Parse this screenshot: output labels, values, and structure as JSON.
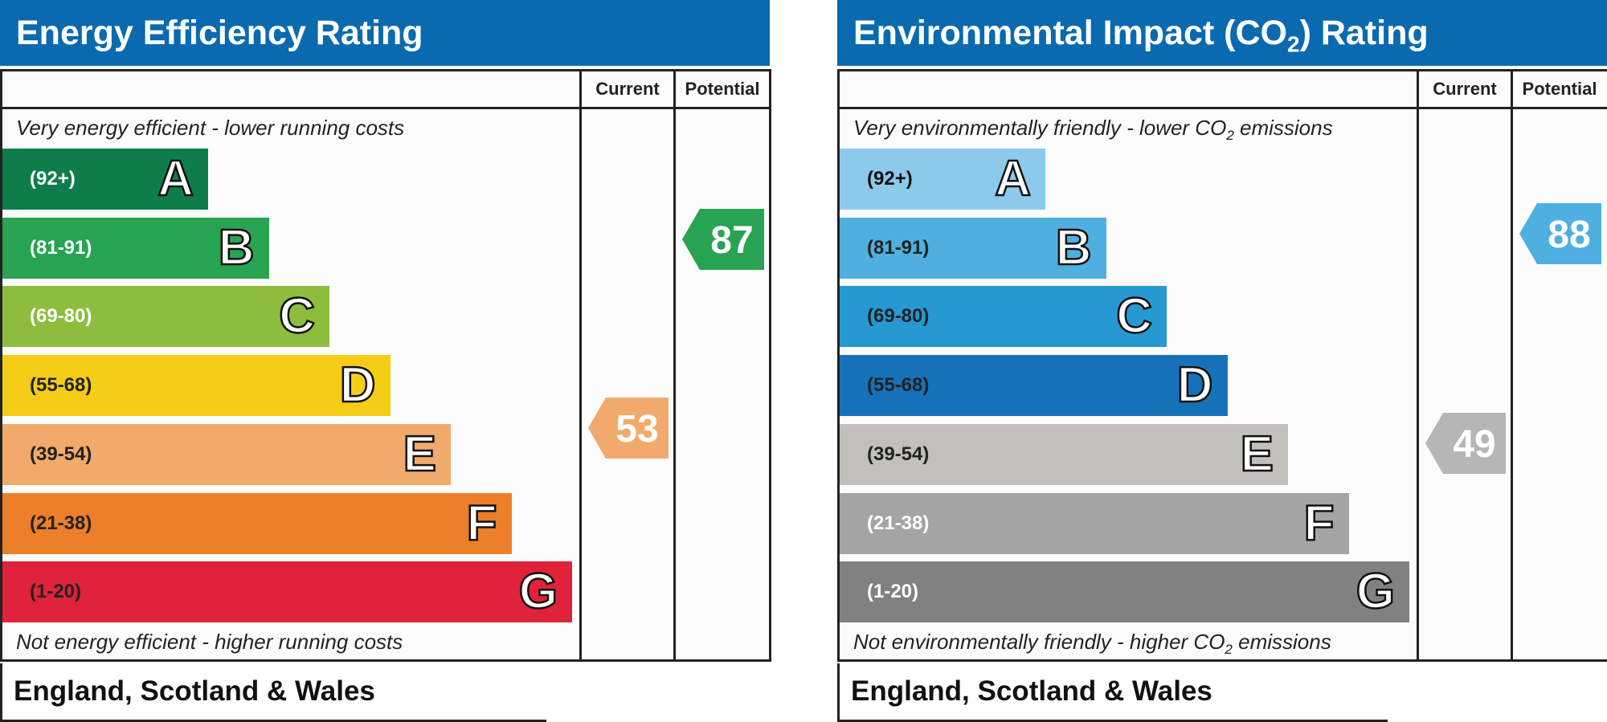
{
  "chart_data": [
    {
      "type": "bar",
      "title": "Energy Efficiency Rating",
      "columns": [
        "Current",
        "Potential"
      ],
      "top_caption": "Very energy efficient - lower running costs",
      "bottom_caption": "Not energy efficient - higher running costs",
      "footer": "England, Scotland & Wales",
      "bands": [
        {
          "letter": "A",
          "range": "(92+)",
          "color": "#0f7d4a",
          "range_color": "#ffffff"
        },
        {
          "letter": "B",
          "range": "(81-91)",
          "color": "#27a351",
          "range_color": "#ffffff"
        },
        {
          "letter": "C",
          "range": "(69-80)",
          "color": "#8dbd3d",
          "range_color": "#ffffff"
        },
        {
          "letter": "D",
          "range": "(55-68)",
          "color": "#f5cd16",
          "range_color": "#222222"
        },
        {
          "letter": "E",
          "range": "(39-54)",
          "color": "#f2aa6c",
          "range_color": "#222222"
        },
        {
          "letter": "F",
          "range": "(21-38)",
          "color": "#ec7f29",
          "range_color": "#222222"
        },
        {
          "letter": "G",
          "range": "(1-20)",
          "color": "#e0223a",
          "range_color": "#222222"
        }
      ],
      "current": {
        "value": 53,
        "band": "E",
        "color": "#f2aa6c"
      },
      "potential": {
        "value": 87,
        "band": "B",
        "color": "#27a351"
      }
    },
    {
      "type": "bar",
      "title_parts": [
        "Environmental Impact (CO",
        "2",
        ") Rating"
      ],
      "columns": [
        "Current",
        "Potential"
      ],
      "top_caption_parts": [
        "Very environmentally friendly - lower CO",
        "2",
        " emissions"
      ],
      "bottom_caption_parts": [
        "Not environmentally friendly - higher CO",
        "2",
        " emissions"
      ],
      "footer": "England, Scotland & Wales",
      "bands": [
        {
          "letter": "A",
          "range": "(92+)",
          "color": "#8ccaeb",
          "range_color": "#111111"
        },
        {
          "letter": "B",
          "range": "(81-91)",
          "color": "#4fb0e0",
          "range_color": "#222222"
        },
        {
          "letter": "C",
          "range": "(69-80)",
          "color": "#2699d3",
          "range_color": "#222222"
        },
        {
          "letter": "D",
          "range": "(55-68)",
          "color": "#1672b8",
          "range_color": "#222222"
        },
        {
          "letter": "E",
          "range": "(39-54)",
          "color": "#c1c0bd",
          "range_color": "#222222"
        },
        {
          "letter": "F",
          "range": "(21-38)",
          "color": "#a4a4a4",
          "range_color": "#ffffff"
        },
        {
          "letter": "G",
          "range": "(1-20)",
          "color": "#818181",
          "range_color": "#ffffff"
        }
      ],
      "current": {
        "value": 49,
        "band": "E",
        "color": "#b6b6b6"
      },
      "potential": {
        "value": 88,
        "band": "B",
        "color": "#4fb0e0"
      }
    }
  ]
}
